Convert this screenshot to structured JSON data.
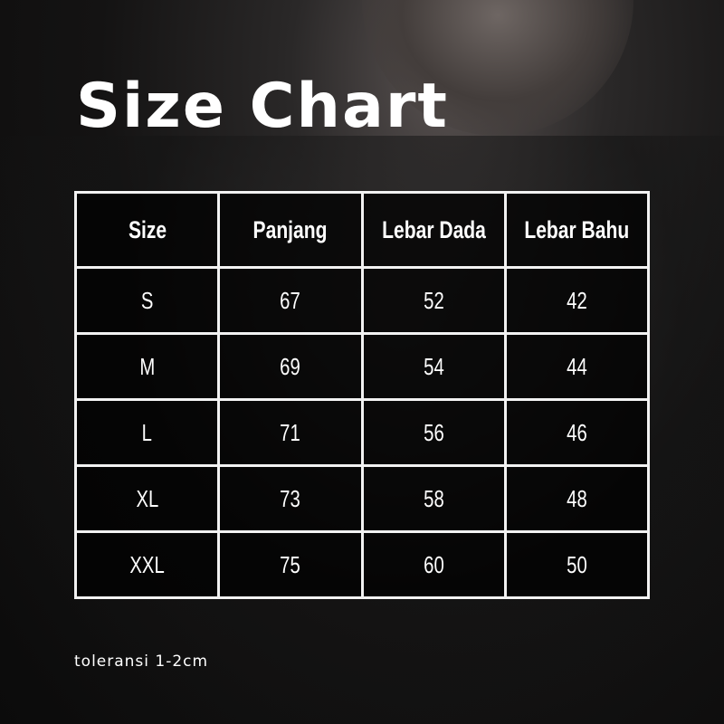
{
  "title": "Size Chart",
  "note": "toleransi 1-2cm",
  "chart_data": {
    "type": "table",
    "title": "Size Chart",
    "columns": [
      "Size",
      "Panjang",
      "Lebar Dada",
      "Lebar Bahu"
    ],
    "rows": [
      [
        "S",
        "67",
        "52",
        "42"
      ],
      [
        "M",
        "69",
        "54",
        "44"
      ],
      [
        "L",
        "71",
        "56",
        "46"
      ],
      [
        "XL",
        "73",
        "58",
        "48"
      ],
      [
        "XXL",
        "75",
        "60",
        "50"
      ]
    ]
  }
}
